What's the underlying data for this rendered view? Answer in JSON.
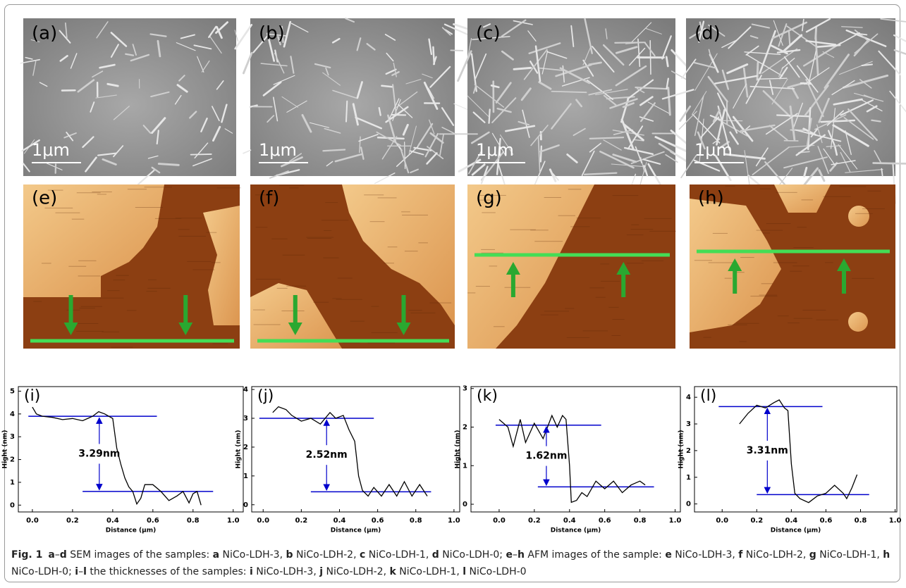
{
  "panels": [
    {
      "label": "(a)",
      "scale_bar": "1μm"
    },
    {
      "label": "(b)",
      "scale_bar": "1μm"
    },
    {
      "label": "(c)",
      "scale_bar": "1μm"
    },
    {
      "label": "(d)",
      "scale_bar": "1μm"
    },
    {
      "label": "(e)"
    },
    {
      "label": "(f)"
    },
    {
      "label": "(g)"
    },
    {
      "label": "(h)"
    }
  ],
  "chart_data": [
    {
      "type": "line",
      "label": "(i)",
      "annotation": "3.29nm",
      "xlabel": "Distance (μm)",
      "ylabel": "Hight (nm)",
      "xlim": [
        -0.07,
        1.05
      ],
      "ylim": [
        -0.3,
        5.2
      ],
      "xticks": [
        {
          "value": 0,
          "label": "0.0"
        },
        0.2,
        0.4,
        0.6,
        0.8,
        {
          "value": 1,
          "label": "1.0"
        }
      ],
      "yticks": [
        0,
        1,
        2,
        3,
        4,
        5
      ],
      "series": [
        {
          "color": "#000000",
          "x": [
            0.0,
            0.02,
            0.05,
            0.1,
            0.15,
            0.2,
            0.25,
            0.3,
            0.33,
            0.36,
            0.4,
            0.42,
            0.44,
            0.46,
            0.48,
            0.5,
            0.52,
            0.54,
            0.56,
            0.6,
            0.64,
            0.68,
            0.72,
            0.75,
            0.78,
            0.8,
            0.82,
            0.84
          ],
          "values": [
            4.3,
            4.0,
            3.9,
            3.85,
            3.75,
            3.8,
            3.7,
            3.9,
            4.1,
            4.0,
            3.8,
            2.5,
            1.8,
            1.2,
            0.8,
            0.6,
            0.05,
            0.3,
            0.9,
            0.9,
            0.6,
            0.2,
            0.4,
            0.6,
            0.1,
            0.5,
            0.6,
            0.0
          ]
        }
      ],
      "levels": [
        {
          "y": 3.9,
          "x": [
            -0.02,
            0.62
          ]
        },
        {
          "y": 0.6,
          "x": [
            0.25,
            0.9
          ]
        }
      ],
      "level_color": "#0000cc"
    },
    {
      "type": "line",
      "label": "(j)",
      "annotation": "2.52nm",
      "xlabel": "Distance (μm)",
      "ylabel": "Hight (nm)",
      "xlim": [
        -0.06,
        1.03
      ],
      "ylim": [
        -0.25,
        4.1
      ],
      "xticks": [
        {
          "value": 0,
          "label": "0.0"
        },
        0.2,
        0.4,
        0.6,
        0.8,
        {
          "value": 1,
          "label": "1.0"
        }
      ],
      "yticks": [
        0,
        1,
        2,
        3,
        4
      ],
      "series": [
        {
          "color": "#000000",
          "x": [
            0.05,
            0.08,
            0.12,
            0.15,
            0.2,
            0.25,
            0.3,
            0.35,
            0.38,
            0.42,
            0.45,
            0.48,
            0.5,
            0.52,
            0.55,
            0.58,
            0.62,
            0.66,
            0.7,
            0.74,
            0.78,
            0.82,
            0.86
          ],
          "values": [
            3.2,
            3.4,
            3.3,
            3.1,
            2.9,
            3.0,
            2.8,
            3.2,
            3.0,
            3.1,
            2.6,
            2.2,
            1.0,
            0.5,
            0.3,
            0.6,
            0.3,
            0.7,
            0.3,
            0.8,
            0.3,
            0.7,
            0.3
          ]
        }
      ],
      "levels": [
        {
          "y": 3.0,
          "x": [
            -0.02,
            0.58
          ]
        },
        {
          "y": 0.45,
          "x": [
            0.25,
            0.88
          ]
        }
      ],
      "level_color": "#0000cc"
    },
    {
      "type": "line",
      "label": "(k)",
      "annotation": "1.62nm",
      "xlabel": "Distance (μm)",
      "ylabel": "Hight (nm)",
      "xlim": [
        -0.16,
        1.03
      ],
      "ylim": [
        -0.2,
        3.05
      ],
      "xticks": [
        {
          "value": 0,
          "label": "0.0"
        },
        0.2,
        0.4,
        0.6,
        0.8,
        {
          "value": 1,
          "label": "1.0"
        }
      ],
      "yticks": [
        0,
        1,
        2,
        3
      ],
      "series": [
        {
          "color": "#000000",
          "x": [
            0.0,
            0.05,
            0.08,
            0.12,
            0.15,
            0.2,
            0.25,
            0.3,
            0.33,
            0.36,
            0.38,
            0.4,
            0.41,
            0.44,
            0.47,
            0.5,
            0.55,
            0.6,
            0.65,
            0.7,
            0.75,
            0.8,
            0.83
          ],
          "values": [
            2.2,
            2.0,
            1.5,
            2.2,
            1.6,
            2.1,
            1.7,
            2.3,
            2.0,
            2.3,
            2.2,
            1.0,
            0.05,
            0.1,
            0.3,
            0.2,
            0.6,
            0.4,
            0.6,
            0.3,
            0.5,
            0.6,
            0.5
          ]
        }
      ],
      "levels": [
        {
          "y": 2.05,
          "x": [
            -0.02,
            0.58
          ]
        },
        {
          "y": 0.45,
          "x": [
            0.22,
            0.88
          ]
        }
      ],
      "level_color": "#0000cc"
    },
    {
      "type": "line",
      "label": "(l)",
      "annotation": "3.31nm",
      "xlabel": "Distance (μm)",
      "ylabel": "Hight (nm)",
      "xlim": [
        -0.16,
        1.01
      ],
      "ylim": [
        -0.3,
        4.4
      ],
      "xticks": [
        {
          "value": 0,
          "label": "0.0"
        },
        0.2,
        0.4,
        0.6,
        0.8,
        {
          "value": 1,
          "label": "1.0"
        }
      ],
      "yticks": [
        0,
        1,
        2,
        3,
        4
      ],
      "series": [
        {
          "color": "#000000",
          "x": [
            0.1,
            0.15,
            0.2,
            0.25,
            0.3,
            0.33,
            0.36,
            0.38,
            0.4,
            0.42,
            0.45,
            0.5,
            0.55,
            0.6,
            0.65,
            0.7,
            0.72,
            0.75,
            0.78
          ],
          "values": [
            3.0,
            3.4,
            3.7,
            3.6,
            3.8,
            3.9,
            3.6,
            3.5,
            1.5,
            0.4,
            0.2,
            0.05,
            0.3,
            0.4,
            0.7,
            0.4,
            0.2,
            0.6,
            1.1
          ]
        }
      ],
      "levels": [
        {
          "y": 3.65,
          "x": [
            -0.02,
            0.58
          ]
        },
        {
          "y": 0.35,
          "x": [
            0.2,
            0.85
          ]
        }
      ],
      "level_color": "#0000cc"
    }
  ],
  "caption": [
    {
      "text": "Fig. 1",
      "bold": true
    },
    {
      "text": "a",
      "bold": true
    },
    {
      "text": "–"
    },
    {
      "text": "d",
      "bold": true
    },
    {
      "text": " SEM images of the samples: "
    },
    {
      "text": "a",
      "bold": true
    },
    {
      "text": " NiCo-LDH-3, "
    },
    {
      "text": "b",
      "bold": true
    },
    {
      "text": " NiCo-LDH-2, "
    },
    {
      "text": "c",
      "bold": true
    },
    {
      "text": " NiCo-LDH-1, "
    },
    {
      "text": "d",
      "bold": true
    },
    {
      "text": " NiCo-LDH-0; "
    },
    {
      "text": "e",
      "bold": true
    },
    {
      "text": "–"
    },
    {
      "text": "h",
      "bold": true
    },
    {
      "text": " AFM images of the sample: "
    },
    {
      "text": "e",
      "bold": true
    },
    {
      "text": " NiCo-LDH-3, "
    },
    {
      "text": "f",
      "bold": true
    },
    {
      "text": " NiCo-LDH-2, "
    },
    {
      "text": "g",
      "bold": true
    },
    {
      "text": " NiCo-LDH-1, "
    },
    {
      "text": "h",
      "bold": true
    },
    {
      "text": " NiCo-LDH-0; "
    },
    {
      "text": "i",
      "bold": true
    },
    {
      "text": "–"
    },
    {
      "text": "l",
      "bold": true
    },
    {
      "text": " the thicknesses of the samples: "
    },
    {
      "text": "i",
      "bold": true
    },
    {
      "text": " NiCo-LDH-3, "
    },
    {
      "text": "j",
      "bold": true
    },
    {
      "text": " NiCo-LDH-2, "
    },
    {
      "text": "k",
      "bold": true
    },
    {
      "text": " NiCo-LDH-1, "
    },
    {
      "text": "l",
      "bold": true
    },
    {
      "text": " NiCo-LDH-0"
    }
  ]
}
